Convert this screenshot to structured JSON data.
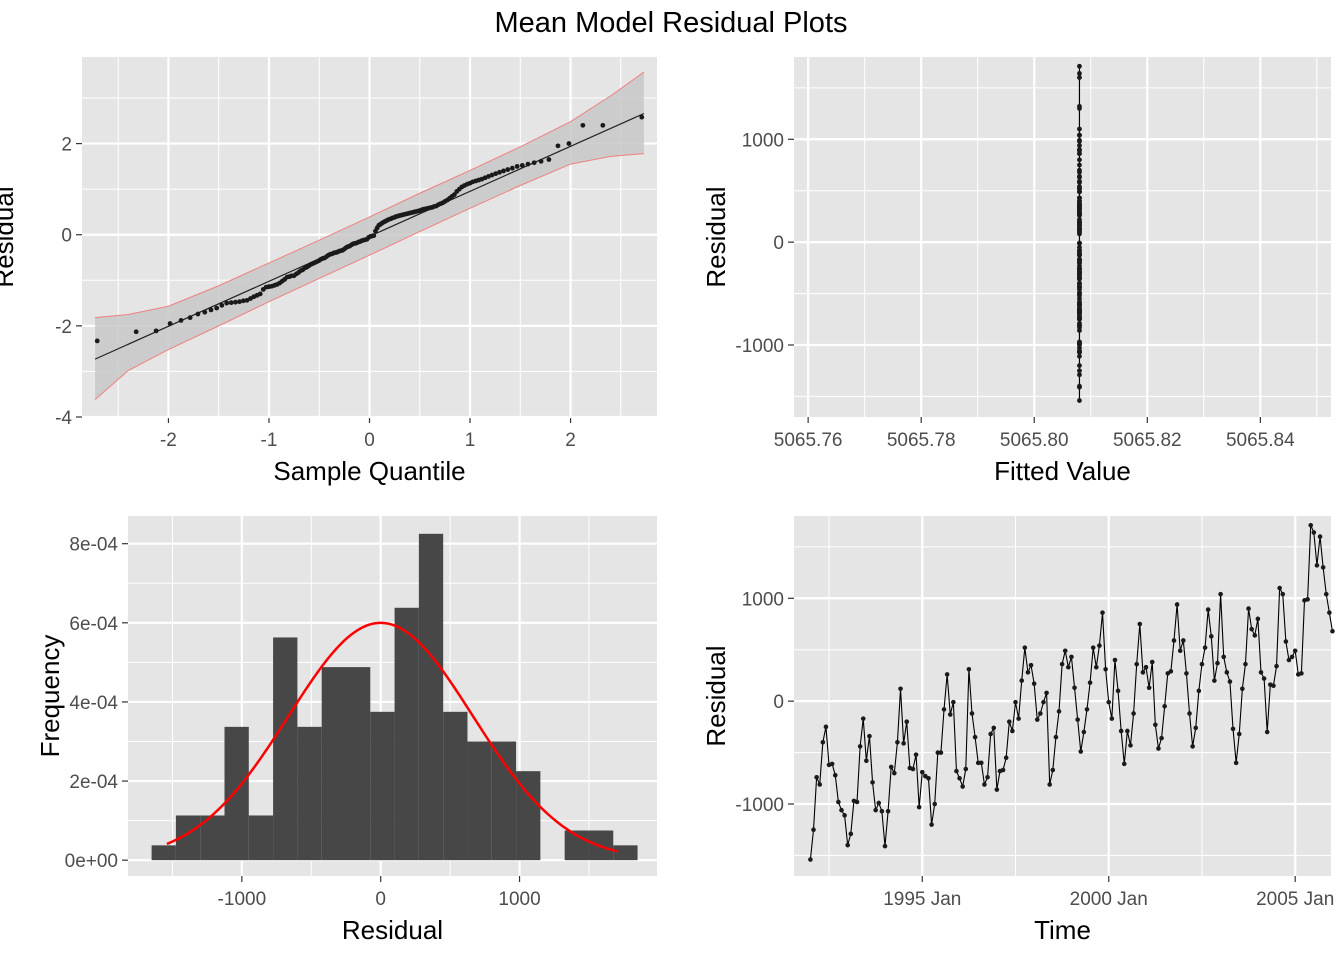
{
  "title": "Mean Model Residual Plots",
  "colors": {
    "panel_bg": "#e5e5e5",
    "grid": "#ffffff",
    "points": "#1a1a1a",
    "normal_curve": "#ff0000",
    "band_fill": "#c8c8c8",
    "band_edge": "#f08080",
    "bars": "#474747"
  },
  "chart_data": [
    {
      "type": "scatter",
      "id": "qq",
      "xlabel": "Sample Quantile",
      "ylabel": "Residual",
      "xlim": [
        -2.86,
        2.86
      ],
      "ylim": [
        -4,
        3.9
      ],
      "xticks": [
        -2,
        -1,
        0,
        1,
        2
      ],
      "xtick_labels": [
        "-2",
        "-1",
        "0",
        "1",
        "2"
      ],
      "yticks": [
        -4,
        -2,
        0,
        2
      ],
      "ytick_labels": [
        "-4",
        "-2",
        "0",
        "2"
      ],
      "reference_line": {
        "x": [
          -2.73,
          2.73
        ],
        "y": [
          -2.73,
          2.66
        ]
      },
      "band": {
        "x": [
          -2.73,
          -2.4,
          -2.0,
          -1.5,
          -1.0,
          -0.5,
          0.0,
          0.5,
          1.0,
          1.5,
          2.0,
          2.4,
          2.73
        ],
        "lower": [
          -3.62,
          -2.98,
          -2.52,
          -2.0,
          -1.47,
          -0.96,
          -0.45,
          0.07,
          0.58,
          1.08,
          1.55,
          1.72,
          1.78
        ],
        "upper": [
          -1.82,
          -1.75,
          -1.57,
          -1.12,
          -0.62,
          -0.12,
          0.39,
          0.91,
          1.41,
          1.93,
          2.48,
          3.05,
          3.57
        ]
      },
      "points_sorted_y": [
        -2.33,
        -2.13,
        -2.11,
        -1.95,
        -1.88,
        -1.82,
        -1.74,
        -1.7,
        -1.65,
        -1.61,
        -1.55,
        -1.5,
        -1.49,
        -1.48,
        -1.47,
        -1.45,
        -1.44,
        -1.4,
        -1.36,
        -1.33,
        -1.3,
        -1.2,
        -1.15,
        -1.14,
        -1.13,
        -1.11,
        -1.09,
        -1.06,
        -1.02,
        -0.98,
        -0.93,
        -0.92,
        -0.9,
        -0.9,
        -0.86,
        -0.83,
        -0.79,
        -0.77,
        -0.73,
        -0.71,
        -0.68,
        -0.65,
        -0.63,
        -0.61,
        -0.59,
        -0.57,
        -0.54,
        -0.52,
        -0.51,
        -0.48,
        -0.45,
        -0.43,
        -0.42,
        -0.4,
        -0.39,
        -0.38,
        -0.36,
        -0.35,
        -0.34,
        -0.31,
        -0.28,
        -0.26,
        -0.25,
        -0.22,
        -0.2,
        -0.19,
        -0.18,
        -0.16,
        -0.15,
        -0.13,
        -0.12,
        -0.11,
        -0.1,
        -0.06,
        -0.04,
        -0.03,
        -0.02,
        0.08,
        0.15,
        0.21,
        0.23,
        0.26,
        0.28,
        0.3,
        0.32,
        0.34,
        0.35,
        0.37,
        0.38,
        0.4,
        0.41,
        0.42,
        0.43,
        0.44,
        0.45,
        0.46,
        0.47,
        0.48,
        0.49,
        0.5,
        0.51,
        0.52,
        0.53,
        0.55,
        0.56,
        0.57,
        0.58,
        0.59,
        0.6,
        0.62,
        0.63,
        0.66,
        0.68,
        0.7,
        0.73,
        0.76,
        0.8,
        0.84,
        0.88,
        0.95,
        1.0,
        1.05,
        1.08,
        1.11,
        1.13,
        1.16,
        1.18,
        1.2,
        1.22,
        1.25,
        1.28,
        1.31,
        1.34,
        1.37,
        1.4,
        1.43,
        1.46,
        1.5,
        1.52,
        1.55,
        1.58,
        1.61,
        1.65,
        1.95,
        2.0,
        2.4,
        2.4,
        2.58
      ]
    },
    {
      "type": "line",
      "id": "fitted",
      "xlabel": "Fitted Value",
      "ylabel": "Residual",
      "xlim": [
        5065.7575,
        5065.8525
      ],
      "ylim": [
        -1700,
        1800
      ],
      "xticks": [
        5065.76,
        5065.78,
        5065.8,
        5065.82,
        5065.84
      ],
      "xtick_labels": [
        "5065.76",
        "5065.78",
        "5065.80",
        "5065.82",
        "5065.84"
      ],
      "yticks": [
        -1000,
        0,
        1000
      ],
      "ytick_labels": [
        "-1000",
        "0",
        "1000"
      ],
      "fitted_value": 5065.808,
      "residual_range": [
        -1540,
        1710
      ]
    },
    {
      "type": "bar",
      "id": "hist",
      "xlabel": "Residual",
      "ylabel": "Frequency",
      "xlim": [
        -1820,
        1990
      ],
      "ylim": [
        -4e-05,
        0.00087
      ],
      "xticks": [
        -1000,
        0,
        1000
      ],
      "xtick_labels": [
        "-1000",
        "0",
        "1000"
      ],
      "yticks": [
        0,
        0.0002,
        0.0004,
        0.0006,
        0.0008
      ],
      "ytick_labels": [
        "0e+00",
        "2e-04",
        "4e-04",
        "6e-04",
        "8e-04"
      ],
      "bin_start": -1650,
      "bin_width": 175,
      "density": [
        3.75e-05,
        0.000113,
        0.000113,
        0.000337,
        0.000113,
        0.000563,
        0.000337,
        0.000488,
        0.000488,
        0.000375,
        0.000638,
        0.000825,
        0.000375,
        0.0003,
        0.0003,
        0.000225,
        0,
        7.5e-05,
        7.5e-05,
        3.75e-05
      ],
      "normal_curve": {
        "mean": 0,
        "sd": 665,
        "x_range": [
          -1540,
          1710
        ]
      }
    },
    {
      "type": "line",
      "id": "time",
      "xlabel": "Time",
      "ylabel": "Residual",
      "xlim": [
        1991.56,
        2005.96
      ],
      "ylim": [
        -1700,
        1800
      ],
      "xticks": [
        1995,
        2000,
        2005
      ],
      "xtick_labels": [
        "1995 Jan",
        "2000 Jan",
        "2005 Jan"
      ],
      "yticks": [
        -1000,
        0,
        1000
      ],
      "ytick_labels": [
        "-1000",
        "0",
        "1000"
      ],
      "start": 1992.0,
      "step": 0.08333,
      "values": [
        -1540,
        -1250,
        -740,
        -810,
        -400,
        -250,
        -620,
        -610,
        -720,
        -980,
        -1060,
        -1110,
        -1400,
        -1290,
        -970,
        -980,
        -440,
        -170,
        -580,
        -340,
        -790,
        -1060,
        -990,
        -1070,
        -1410,
        -1070,
        -640,
        -700,
        -400,
        120,
        -410,
        -200,
        -650,
        -660,
        -520,
        -1030,
        -690,
        -730,
        -750,
        -1200,
        -1000,
        -500,
        -500,
        -80,
        260,
        -130,
        -10,
        -680,
        -750,
        -830,
        -660,
        310,
        -120,
        -350,
        -600,
        -600,
        -810,
        -740,
        -320,
        -260,
        -860,
        -680,
        -670,
        -550,
        -200,
        -290,
        -10,
        -170,
        200,
        520,
        280,
        350,
        170,
        -180,
        -120,
        -10,
        80,
        -810,
        -670,
        -350,
        -100,
        360,
        490,
        330,
        430,
        130,
        -180,
        -490,
        -300,
        -80,
        180,
        520,
        330,
        540,
        860,
        310,
        -10,
        -170,
        400,
        100,
        -290,
        -610,
        -290,
        -430,
        -120,
        360,
        750,
        280,
        330,
        130,
        380,
        -230,
        -460,
        -360,
        -50,
        270,
        290,
        590,
        940,
        490,
        590,
        270,
        -120,
        -440,
        -260,
        100,
        360,
        520,
        890,
        630,
        200,
        370,
        1040,
        430,
        280,
        190,
        -270,
        -600,
        -320,
        120,
        360,
        900,
        700,
        640,
        800,
        280,
        220,
        -300,
        160,
        150,
        340,
        1100,
        1040,
        580,
        400,
        430,
        490,
        260,
        270,
        980,
        990,
        1710,
        1640,
        1320,
        1600,
        1300,
        1040,
        860,
        680
      ]
    }
  ]
}
